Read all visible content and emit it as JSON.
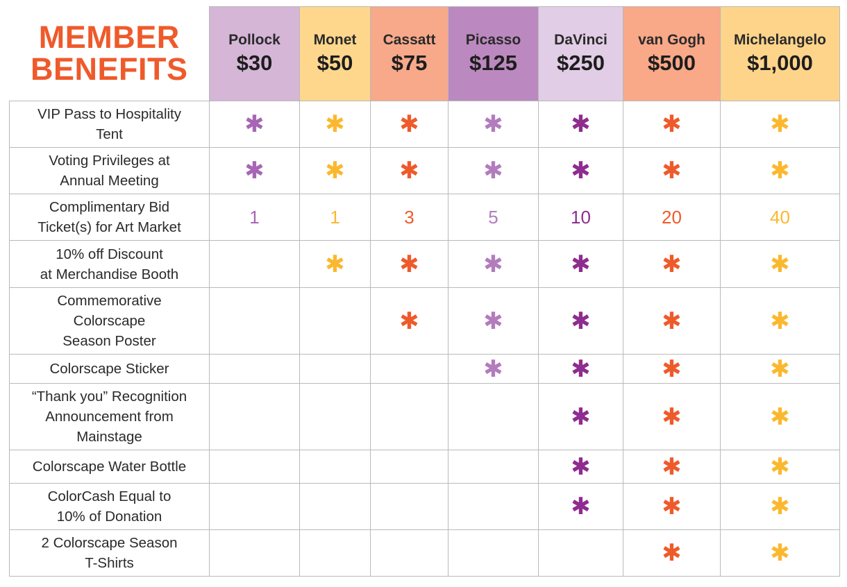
{
  "title": {
    "line1": "MEMBER",
    "line2": "BENEFITS"
  },
  "tiers": [
    {
      "name": "Pollock",
      "price": "$30",
      "bg": "#d5b6d7",
      "fg": "#a766b5"
    },
    {
      "name": "Monet",
      "price": "$50",
      "bg": "#fed78c",
      "fg": "#fbb82e"
    },
    {
      "name": "Cassatt",
      "price": "$75",
      "bg": "#f7a98a",
      "fg": "#ef5a2b"
    },
    {
      "name": "Picasso",
      "price": "$125",
      "bg": "#bb89bf",
      "fg": "#b27cbd"
    },
    {
      "name": "DaVinci",
      "price": "$250",
      "bg": "#e1cde5",
      "fg": "#8e2c8f"
    },
    {
      "name": "van Gogh",
      "price": "$500",
      "bg": "#f9a888",
      "fg": "#ef5a2b"
    },
    {
      "name": "Michelangelo",
      "price": "$1,000",
      "bg": "#fed48b",
      "fg": "#fbb82e"
    }
  ],
  "benefits": [
    {
      "label": [
        "VIP Pass to Hospitality",
        "Tent"
      ],
      "values": [
        "✱",
        "✱",
        "✱",
        "✱",
        "✱",
        "✱",
        "✱"
      ]
    },
    {
      "label": [
        "Voting Privileges at",
        "Annual Meeting"
      ],
      "values": [
        "✱",
        "✱",
        "✱",
        "✱",
        "✱",
        "✱",
        "✱"
      ]
    },
    {
      "label": [
        "Complimentary Bid",
        "Ticket(s) for Art Market"
      ],
      "values": [
        "1",
        "1",
        "3",
        "5",
        "10",
        "20",
        "40"
      ]
    },
    {
      "label": [
        "10% off Discount",
        "at Merchandise Booth"
      ],
      "values": [
        "",
        "✱",
        "✱",
        "✱",
        "✱",
        "✱",
        "✱"
      ]
    },
    {
      "label": [
        "Commemorative",
        "Colorscape",
        "Season Poster"
      ],
      "values": [
        "",
        "",
        "✱",
        "✱",
        "✱",
        "✱",
        "✱"
      ]
    },
    {
      "label": [
        "Colorscape Sticker"
      ],
      "values": [
        "",
        "",
        "",
        "✱",
        "✱",
        "✱",
        "✱"
      ]
    },
    {
      "label": [
        "“Thank you” Recognition",
        "Announcement from",
        "Mainstage"
      ],
      "values": [
        "",
        "",
        "",
        "",
        "✱",
        "✱",
        "✱"
      ]
    },
    {
      "label": [
        "Colorscape Water Bottle"
      ],
      "values": [
        "",
        "",
        "",
        "",
        "✱",
        "✱",
        "✱"
      ]
    },
    {
      "label": [
        "ColorCash Equal to",
        "10% of Donation"
      ],
      "values": [
        "",
        "",
        "",
        "",
        "✱",
        "✱",
        "✱"
      ]
    },
    {
      "label": [
        "2 Colorscape Season",
        "T-Shirts"
      ],
      "values": [
        "",
        "",
        "",
        "",
        "",
        "✱",
        "✱"
      ]
    }
  ]
}
